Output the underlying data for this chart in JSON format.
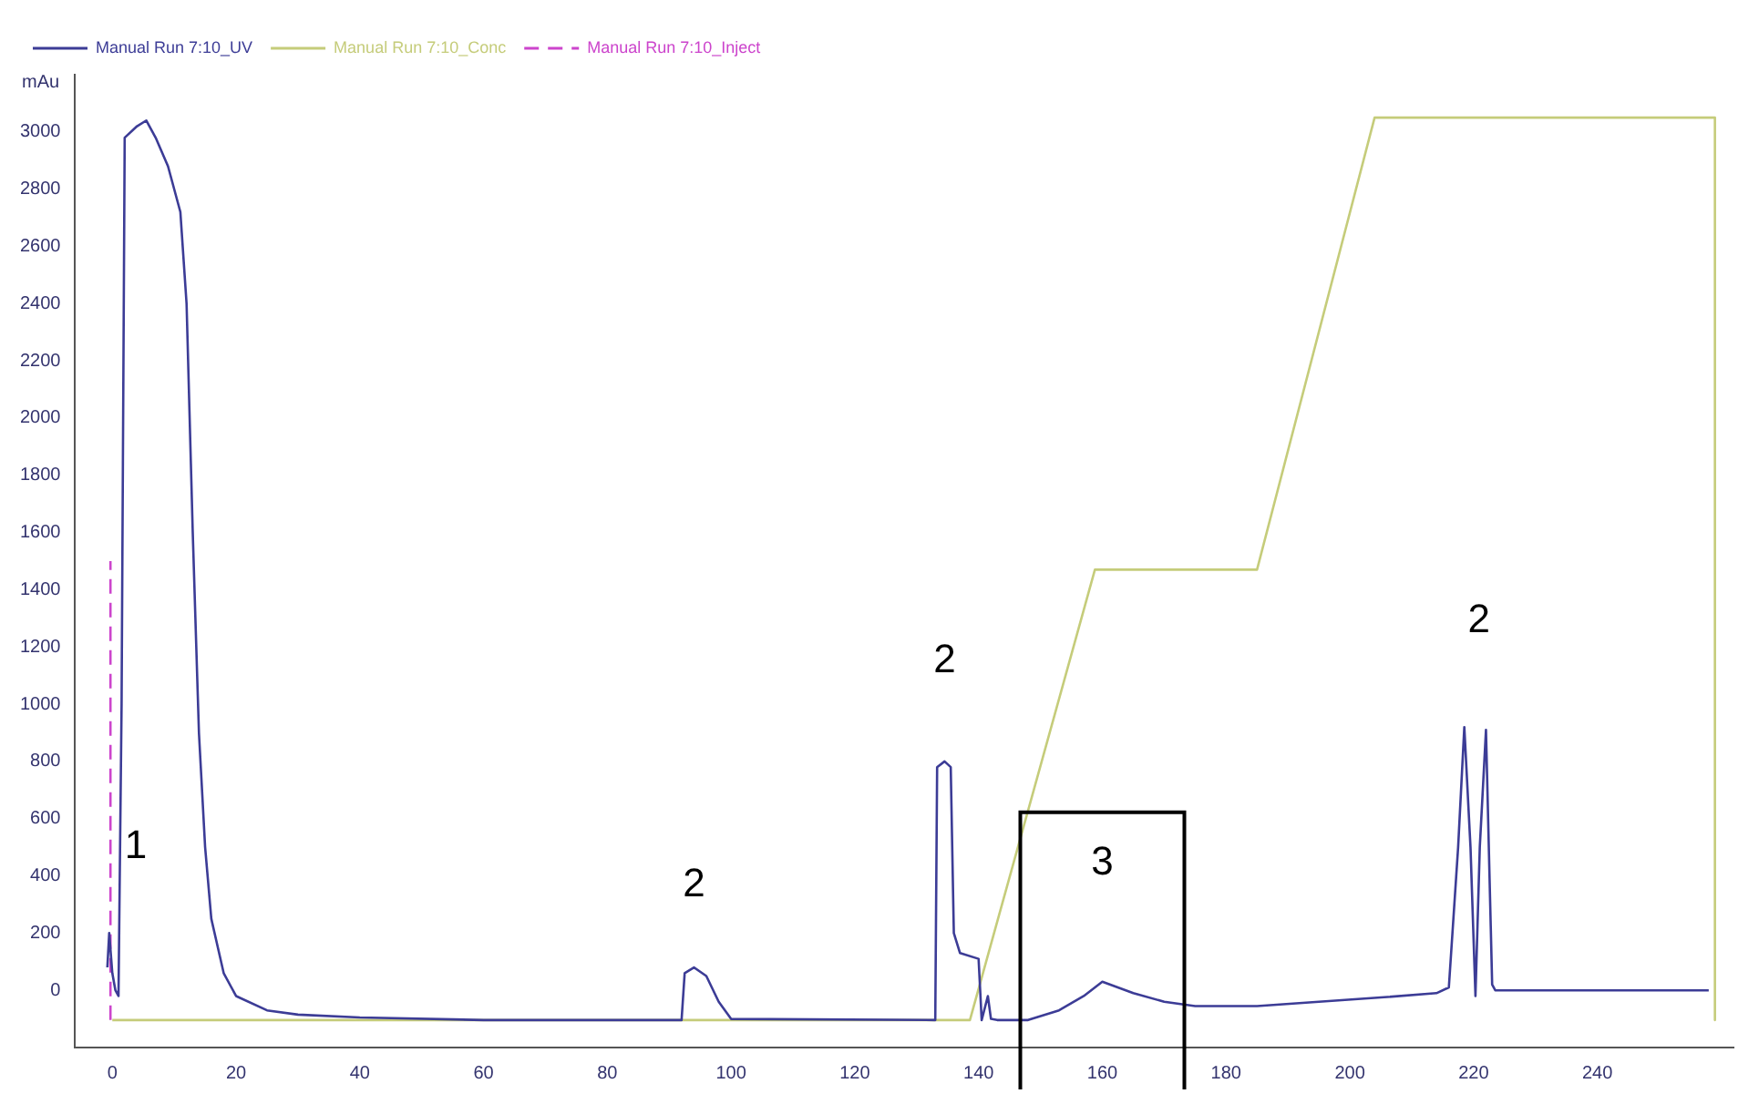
{
  "chart_data": {
    "type": "line",
    "ylabel": "mAu",
    "legend": "top left",
    "grid": false,
    "marker": "none",
    "xlim": [
      -6,
      262
    ],
    "ylim": [
      -200,
      3200
    ],
    "xticks": [
      0,
      20,
      40,
      60,
      80,
      100,
      120,
      140,
      160,
      180,
      200,
      220,
      240
    ],
    "yticks": [
      0,
      200,
      400,
      600,
      800,
      1000,
      1200,
      1400,
      1600,
      1800,
      2000,
      2200,
      2400,
      2600,
      2800,
      3000
    ],
    "series": [
      {
        "name": "Manual Run 7:10_UV",
        "color": "#3c3c96",
        "line_style": "solid",
        "x": [
          -0.8,
          -0.5,
          0,
          0.5,
          1,
          1.5,
          2,
          4,
          5.5,
          7,
          9,
          11,
          12,
          13,
          14,
          15,
          16,
          18,
          20,
          25,
          30,
          40,
          60,
          92,
          92.5,
          94,
          96,
          98,
          100,
          133,
          133.3,
          134.5,
          135.5,
          136,
          137,
          140,
          140.5,
          141.5,
          142,
          143,
          148,
          153,
          157,
          160,
          165,
          170,
          175,
          185,
          195,
          205,
          214,
          216,
          217.5,
          218.5,
          219.5,
          220.3,
          221,
          222,
          223,
          223.5,
          258
        ],
        "values": [
          80,
          200,
          60,
          0,
          -20,
          1000,
          2980,
          3020,
          3040,
          2980,
          2880,
          2720,
          2400,
          1600,
          900,
          500,
          250,
          60,
          -20,
          -70,
          -85,
          -95,
          -104,
          -104,
          60,
          80,
          50,
          -40,
          -100,
          -104,
          780,
          800,
          780,
          200,
          130,
          110,
          -104,
          -20,
          -100,
          -104,
          -104,
          -70,
          -20,
          30,
          -10,
          -40,
          -55,
          -55,
          -40,
          -25,
          -10,
          10,
          500,
          920,
          500,
          -20,
          500,
          910,
          20,
          0,
          0
        ]
      },
      {
        "name": "Manual Run 7:10_Conc",
        "color": "#c5cc7a",
        "line_style": "solid",
        "x": [
          0,
          138.6,
          158.8,
          185,
          204,
          259,
          259
        ],
        "values": [
          -104,
          -104,
          1470,
          1470,
          3050,
          3050,
          -104
        ]
      },
      {
        "name": "Manual Run 7:10_Inject",
        "color": "#cc44cc",
        "line_style": "dashed",
        "x": [
          -0.3,
          -0.3
        ],
        "values": [
          -104,
          1500
        ]
      }
    ],
    "annotations": [
      {
        "text": "1",
        "x": 15,
        "y": 500
      },
      {
        "text": "2",
        "x": 94,
        "y": 80
      },
      {
        "text": "2",
        "x": 134.5,
        "y": 800
      },
      {
        "text": "2",
        "x": 218.5,
        "y": 920
      },
      {
        "text": "3",
        "x": 160,
        "y": 30
      }
    ]
  }
}
